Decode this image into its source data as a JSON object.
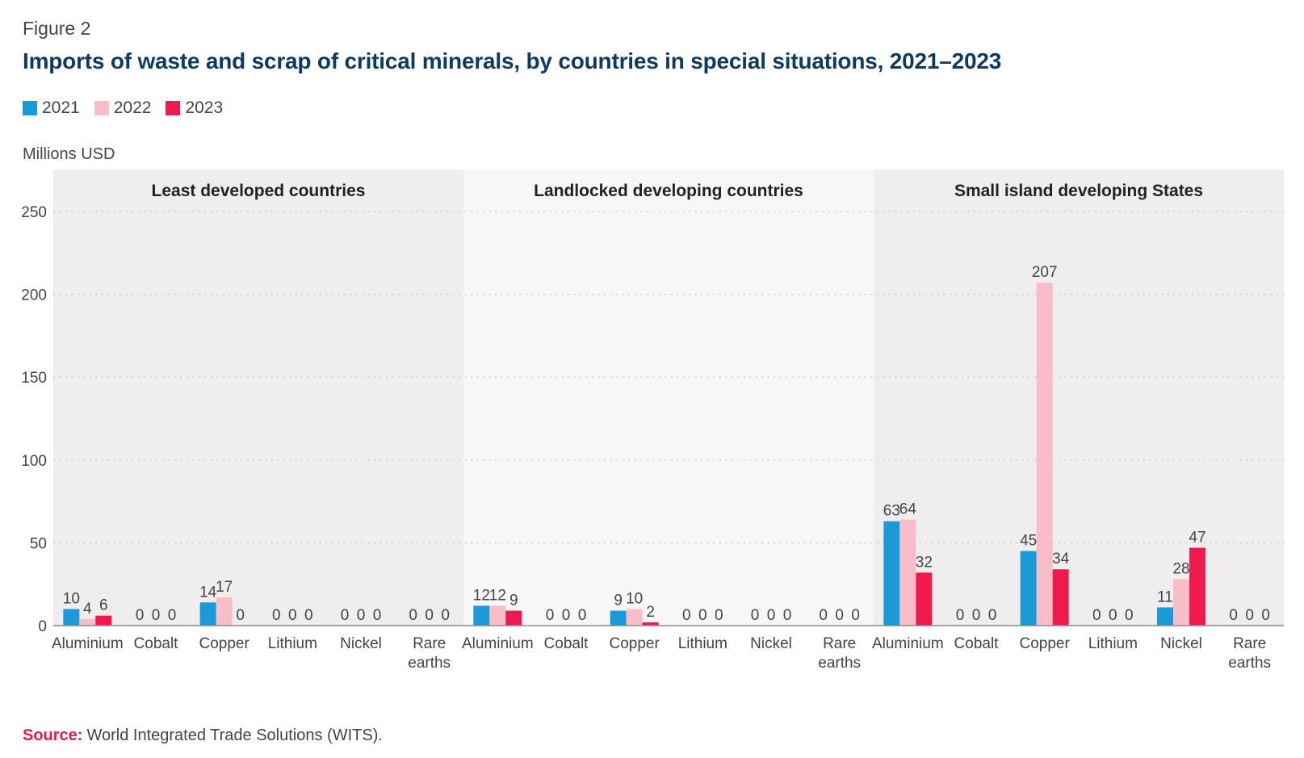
{
  "figure_label": "Figure 2",
  "source": {
    "label": "Source:",
    "text": "World Integrated Trade Solutions (WITS)."
  },
  "colors": {
    "2021": "#1a9ad6",
    "2022": "#f8bdc6",
    "2023": "#ee1a4e",
    "title": "#0f3a5f",
    "source": "#e01e4a",
    "panel_dark": "#efedee",
    "panel_light": "#f7f7f7"
  },
  "chart_data": {
    "type": "bar",
    "title": "Imports of waste and scrap of critical minerals, by countries in special situations, 2021–2023",
    "ylabel": "Millions USD",
    "xlabel": "",
    "ylim": [
      0,
      250
    ],
    "yticks": [
      0,
      50,
      100,
      150,
      200,
      250
    ],
    "grid": true,
    "legend": [
      "2021",
      "2022",
      "2023"
    ],
    "legend_position": "top-left",
    "panels": [
      {
        "name": "Least developed countries",
        "categories": [
          "Aluminium",
          "Cobalt",
          "Copper",
          "Lithium",
          "Nickel",
          "Rare earths"
        ],
        "series": [
          {
            "name": "2021",
            "values": [
              10,
              0,
              14,
              0,
              0,
              0
            ]
          },
          {
            "name": "2022",
            "values": [
              4,
              0,
              17,
              0,
              0,
              0
            ]
          },
          {
            "name": "2023",
            "values": [
              6,
              0,
              0,
              0,
              0,
              0
            ]
          }
        ]
      },
      {
        "name": "Landlocked developing countries",
        "categories": [
          "Aluminium",
          "Cobalt",
          "Copper",
          "Lithium",
          "Nickel",
          "Rare earths"
        ],
        "series": [
          {
            "name": "2021",
            "values": [
              12,
              0,
              9,
              0,
              0,
              0
            ]
          },
          {
            "name": "2022",
            "values": [
              12,
              0,
              10,
              0,
              0,
              0
            ]
          },
          {
            "name": "2023",
            "values": [
              9,
              0,
              2,
              0,
              0,
              0
            ]
          }
        ]
      },
      {
        "name": "Small island developing States",
        "categories": [
          "Aluminium",
          "Cobalt",
          "Copper",
          "Lithium",
          "Nickel",
          "Rare earths"
        ],
        "series": [
          {
            "name": "2021",
            "values": [
              63,
              0,
              45,
              0,
              11,
              0
            ]
          },
          {
            "name": "2022",
            "values": [
              64,
              0,
              207,
              0,
              28,
              0
            ]
          },
          {
            "name": "2023",
            "values": [
              32,
              0,
              34,
              0,
              47,
              0
            ]
          }
        ]
      }
    ]
  }
}
